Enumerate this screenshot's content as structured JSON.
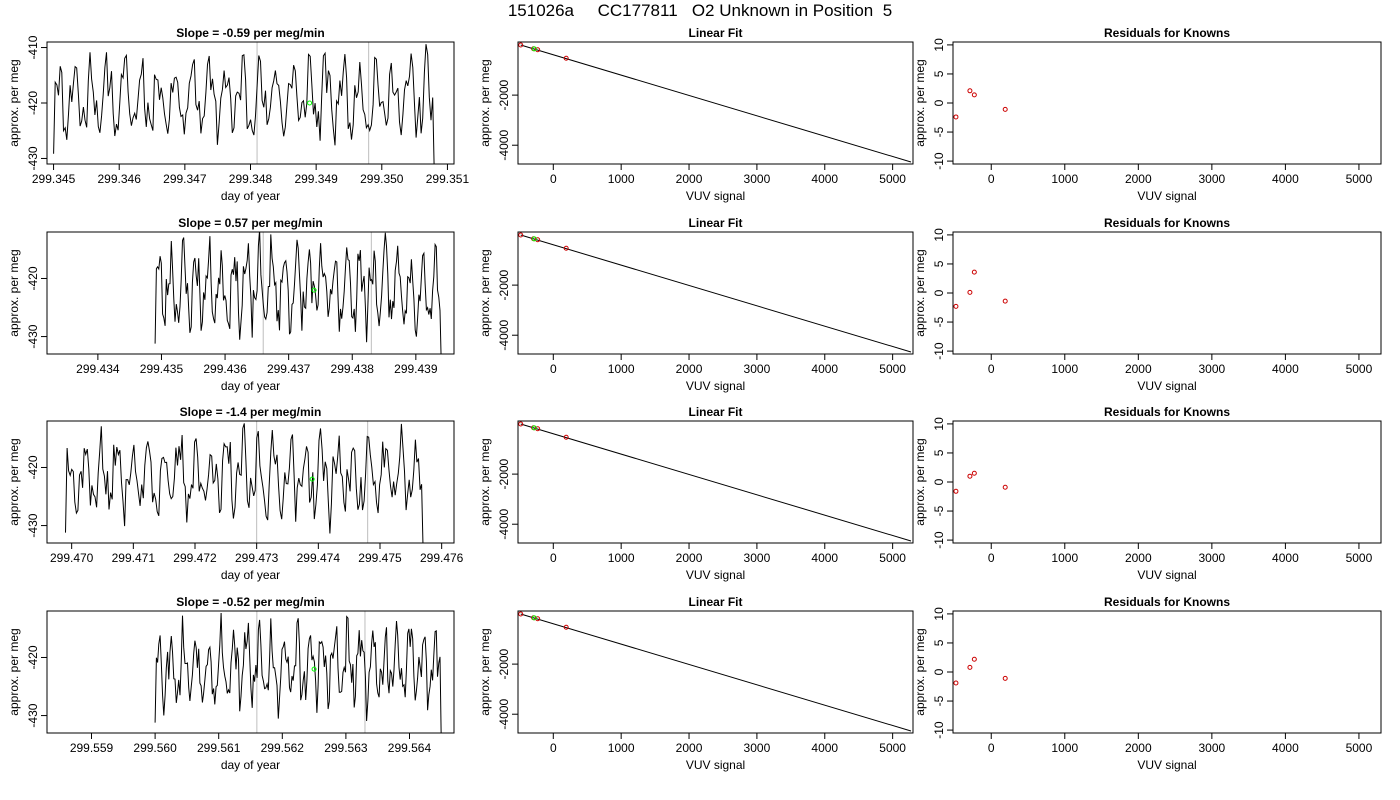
{
  "figure": {
    "title": "151026a     CC177811   O2 Unknown in Position  5"
  },
  "colors": {
    "trace": "#000000",
    "vertical_markers": "#bebebe",
    "unknown_point": "#00ff00",
    "known_point": "#cc0000",
    "fit_line": "#000000"
  },
  "chart_data": [
    {
      "panel": "row1-time-series",
      "type": "line",
      "title": "Slope =  -0.59  per meg/min",
      "xlabel": "day of year",
      "ylabel": "approx. per meg",
      "xlim": [
        299.3449,
        299.3511
      ],
      "ylim": [
        -431,
        -409
      ],
      "xticks": [
        "299.345",
        "299.346",
        "299.347",
        "299.348",
        "299.349",
        "299.350",
        "299.351"
      ],
      "xtick_values": [
        299.345,
        299.346,
        299.347,
        299.348,
        299.349,
        299.35,
        299.351
      ],
      "yticks": [
        "-410",
        "-420",
        "-430"
      ],
      "ytick_values": [
        -410,
        -420,
        -430
      ],
      "vlines": [
        299.3481,
        299.3498
      ],
      "trace_start": 299.345,
      "trace_end": 299.3508,
      "trace_seed": 11,
      "unknown_points": [
        {
          "x": 299.3489,
          "y": -420
        }
      ]
    },
    {
      "panel": "row1-linear-fit",
      "type": "scatter",
      "title": "Linear Fit",
      "xlabel": "VUV signal",
      "ylabel": "approx. per meg",
      "xlim": [
        -520,
        5300
      ],
      "ylim": [
        -4750,
        120
      ],
      "xticks": [
        "0",
        "1000",
        "2000",
        "3000",
        "4000",
        "5000"
      ],
      "xtick_values": [
        0,
        1000,
        2000,
        3000,
        4000,
        5000
      ],
      "yticks": [
        "-2000",
        "-4000"
      ],
      "ytick_values": [
        -2000,
        -4000
      ],
      "fit_line": [
        [
          -480,
          0
        ],
        [
          5270,
          -4670
        ]
      ],
      "known_points": [
        {
          "x": -480,
          "y": 0
        },
        {
          "x": -290,
          "y": -150
        },
        {
          "x": -230,
          "y": -190
        },
        {
          "x": 190,
          "y": -530
        }
      ],
      "unknown_points": [
        {
          "x": -280,
          "y": -155
        }
      ]
    },
    {
      "panel": "row1-residuals",
      "type": "scatter",
      "title": "Residuals for Knowns",
      "xlabel": "VUV signal",
      "ylabel": "approx. per meg",
      "xlim": [
        -520,
        5300
      ],
      "ylim": [
        -10.5,
        10.5
      ],
      "xticks": [
        "0",
        "1000",
        "2000",
        "3000",
        "4000",
        "5000"
      ],
      "xtick_values": [
        0,
        1000,
        2000,
        3000,
        4000,
        5000
      ],
      "yticks": [
        "10",
        "5",
        "0",
        "-5",
        "-10"
      ],
      "ytick_values": [
        10,
        5,
        0,
        -5,
        -10
      ],
      "known_points": [
        {
          "x": -480,
          "y": -2.4
        },
        {
          "x": -290,
          "y": 2.1
        },
        {
          "x": -230,
          "y": 1.4
        },
        {
          "x": 190,
          "y": -1.1
        }
      ]
    },
    {
      "panel": "row2-time-series",
      "type": "line",
      "title": "Slope =  0.57  per meg/min",
      "xlabel": "day of year",
      "ylabel": "approx. per meg",
      "xlim": [
        299.4332,
        299.4396
      ],
      "ylim": [
        -433,
        -412
      ],
      "xticks": [
        "299.434",
        "299.435",
        "299.436",
        "299.437",
        "299.438",
        "299.439"
      ],
      "xtick_values": [
        299.434,
        299.435,
        299.436,
        299.437,
        299.438,
        299.439
      ],
      "yticks": [
        "-420",
        "-430"
      ],
      "ytick_values": [
        -420,
        -430
      ],
      "vlines": [
        299.4366,
        299.4383
      ],
      "trace_start": 299.4349,
      "trace_end": 299.4394,
      "trace_seed": 23,
      "unknown_points": [
        {
          "x": 299.4374,
          "y": -422
        }
      ]
    },
    {
      "panel": "row2-linear-fit",
      "type": "scatter",
      "title": "Linear Fit",
      "xlabel": "VUV signal",
      "ylabel": "approx. per meg",
      "xlim": [
        -520,
        5300
      ],
      "ylim": [
        -4750,
        120
      ],
      "xticks": [
        "0",
        "1000",
        "2000",
        "3000",
        "4000",
        "5000"
      ],
      "xtick_values": [
        0,
        1000,
        2000,
        3000,
        4000,
        5000
      ],
      "yticks": [
        "-2000",
        "-4000"
      ],
      "ytick_values": [
        -2000,
        -4000
      ],
      "fit_line": [
        [
          -480,
          0
        ],
        [
          5270,
          -4670
        ]
      ],
      "known_points": [
        {
          "x": -480,
          "y": 0
        },
        {
          "x": -290,
          "y": -150
        },
        {
          "x": -230,
          "y": -190
        },
        {
          "x": 190,
          "y": -530
        }
      ],
      "unknown_points": [
        {
          "x": -280,
          "y": -155
        }
      ]
    },
    {
      "panel": "row2-residuals",
      "type": "scatter",
      "title": "Residuals for Knowns",
      "xlabel": "VUV signal",
      "ylabel": "approx. per meg",
      "xlim": [
        -520,
        5300
      ],
      "ylim": [
        -10.5,
        10.5
      ],
      "xticks": [
        "0",
        "1000",
        "2000",
        "3000",
        "4000",
        "5000"
      ],
      "xtick_values": [
        0,
        1000,
        2000,
        3000,
        4000,
        5000
      ],
      "yticks": [
        "10",
        "5",
        "0",
        "-5",
        "-10"
      ],
      "ytick_values": [
        10,
        5,
        0,
        -5,
        -10
      ],
      "known_points": [
        {
          "x": -480,
          "y": -2.3
        },
        {
          "x": -290,
          "y": 0.1
        },
        {
          "x": -230,
          "y": 3.6
        },
        {
          "x": 190,
          "y": -1.4
        }
      ]
    },
    {
      "panel": "row3-time-series",
      "type": "line",
      "title": "Slope =  -1.4  per meg/min",
      "xlabel": "day of year",
      "ylabel": "approx. per meg",
      "xlim": [
        299.4696,
        299.4762
      ],
      "ylim": [
        -433,
        -412
      ],
      "xticks": [
        "299.470",
        "299.471",
        "299.472",
        "299.473",
        "299.474",
        "299.475",
        "299.476"
      ],
      "xtick_values": [
        299.47,
        299.471,
        299.472,
        299.473,
        299.474,
        299.475,
        299.476
      ],
      "yticks": [
        "-420",
        "-430"
      ],
      "ytick_values": [
        -420,
        -430
      ],
      "vlines": [
        299.473,
        299.4748
      ],
      "trace_start": 299.4699,
      "trace_end": 299.4757,
      "trace_seed": 37,
      "unknown_points": [
        {
          "x": 299.4739,
          "y": -422
        }
      ]
    },
    {
      "panel": "row3-linear-fit",
      "type": "scatter",
      "title": "Linear Fit",
      "xlabel": "VUV signal",
      "ylabel": "approx. per meg",
      "xlim": [
        -520,
        5300
      ],
      "ylim": [
        -4750,
        120
      ],
      "xticks": [
        "0",
        "1000",
        "2000",
        "3000",
        "4000",
        "5000"
      ],
      "xtick_values": [
        0,
        1000,
        2000,
        3000,
        4000,
        5000
      ],
      "yticks": [
        "-2000",
        "-4000"
      ],
      "ytick_values": [
        -2000,
        -4000
      ],
      "fit_line": [
        [
          -480,
          0
        ],
        [
          5270,
          -4670
        ]
      ],
      "known_points": [
        {
          "x": -480,
          "y": 0
        },
        {
          "x": -290,
          "y": -150
        },
        {
          "x": -230,
          "y": -190
        },
        {
          "x": 190,
          "y": -530
        }
      ],
      "unknown_points": [
        {
          "x": -280,
          "y": -155
        }
      ]
    },
    {
      "panel": "row3-residuals",
      "type": "scatter",
      "title": "Residuals for Knowns",
      "xlabel": "VUV signal",
      "ylabel": "approx. per meg",
      "xlim": [
        -520,
        5300
      ],
      "ylim": [
        -10.5,
        10.5
      ],
      "xticks": [
        "0",
        "1000",
        "2000",
        "3000",
        "4000",
        "5000"
      ],
      "xtick_values": [
        0,
        1000,
        2000,
        3000,
        4000,
        5000
      ],
      "yticks": [
        "10",
        "5",
        "0",
        "-5",
        "-10"
      ],
      "ytick_values": [
        10,
        5,
        0,
        -5,
        -10
      ],
      "known_points": [
        {
          "x": -480,
          "y": -1.6
        },
        {
          "x": -290,
          "y": 1.0
        },
        {
          "x": -230,
          "y": 1.5
        },
        {
          "x": 190,
          "y": -0.9
        }
      ]
    },
    {
      "panel": "row4-time-series",
      "type": "line",
      "title": "Slope =  -0.52  per meg/min",
      "xlabel": "day of year",
      "ylabel": "approx. per meg",
      "xlim": [
        299.5583,
        299.5647
      ],
      "ylim": [
        -433,
        -412
      ],
      "xticks": [
        "299.559",
        "299.560",
        "299.561",
        "299.562",
        "299.563",
        "299.564"
      ],
      "xtick_values": [
        299.559,
        299.56,
        299.561,
        299.562,
        299.563,
        299.564
      ],
      "yticks": [
        "-420",
        "-430"
      ],
      "ytick_values": [
        -420,
        -430
      ],
      "vlines": [
        299.5616,
        299.5633
      ],
      "trace_start": 299.56,
      "trace_end": 299.5645,
      "trace_seed": 53,
      "unknown_points": [
        {
          "x": 299.5625,
          "y": -422
        }
      ]
    },
    {
      "panel": "row4-linear-fit",
      "type": "scatter",
      "title": "Linear Fit",
      "xlabel": "VUV signal",
      "ylabel": "approx. per meg",
      "xlim": [
        -520,
        5300
      ],
      "ylim": [
        -4750,
        120
      ],
      "xticks": [
        "0",
        "1000",
        "2000",
        "3000",
        "4000",
        "5000"
      ],
      "xtick_values": [
        0,
        1000,
        2000,
        3000,
        4000,
        5000
      ],
      "yticks": [
        "-2000",
        "-4000"
      ],
      "ytick_values": [
        -2000,
        -4000
      ],
      "fit_line": [
        [
          -480,
          0
        ],
        [
          5270,
          -4670
        ]
      ],
      "known_points": [
        {
          "x": -480,
          "y": 0
        },
        {
          "x": -290,
          "y": -150
        },
        {
          "x": -230,
          "y": -190
        },
        {
          "x": 190,
          "y": -530
        }
      ],
      "unknown_points": [
        {
          "x": -280,
          "y": -155
        }
      ]
    },
    {
      "panel": "row4-residuals",
      "type": "scatter",
      "title": "Residuals for Knowns",
      "xlabel": "VUV signal",
      "ylabel": "approx. per meg",
      "xlim": [
        -520,
        5300
      ],
      "ylim": [
        -10.5,
        10.5
      ],
      "xticks": [
        "0",
        "1000",
        "2000",
        "3000",
        "4000",
        "5000"
      ],
      "xtick_values": [
        0,
        1000,
        2000,
        3000,
        4000,
        5000
      ],
      "yticks": [
        "10",
        "5",
        "0",
        "-5",
        "-10"
      ],
      "ytick_values": [
        10,
        5,
        0,
        -5,
        -10
      ],
      "known_points": [
        {
          "x": -480,
          "y": -1.9
        },
        {
          "x": -290,
          "y": 0.8
        },
        {
          "x": -230,
          "y": 2.2
        },
        {
          "x": 190,
          "y": -1.1
        }
      ]
    }
  ]
}
